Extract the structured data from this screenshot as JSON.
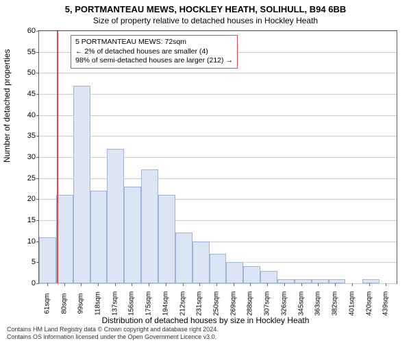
{
  "title_main": "5, PORTMANTEAU MEWS, HOCKLEY HEATH, SOLIHULL, B94 6BB",
  "title_sub": "Size of property relative to detached houses in Hockley Heath",
  "chart": {
    "type": "histogram",
    "y_label": "Number of detached properties",
    "x_label": "Distribution of detached houses by size in Hockley Heath",
    "ylim_min": 0,
    "ylim_max": 60,
    "y_ticks": [
      0,
      5,
      10,
      15,
      20,
      25,
      30,
      35,
      40,
      45,
      50,
      55,
      60
    ],
    "x_tick_labels": [
      "61sqm",
      "80sqm",
      "99sqm",
      "118sqm",
      "137sqm",
      "156sqm",
      "175sqm",
      "194sqm",
      "212sqm",
      "231sqm",
      "250sqm",
      "269sqm",
      "288sqm",
      "307sqm",
      "326sqm",
      "345sqm",
      "363sqm",
      "382sqm",
      "401sqm",
      "420sqm",
      "439sqm"
    ],
    "x_min": 61,
    "x_max": 439,
    "bar_min": 52,
    "bar_width_data": 19,
    "bar_values": [
      11,
      21,
      47,
      22,
      32,
      23,
      27,
      21,
      12,
      10,
      7,
      5,
      4,
      3,
      1,
      1,
      1,
      1,
      0,
      1,
      0
    ],
    "bar_color": "#dbe5f4",
    "bar_border_color": "#9cb3d6",
    "grid_color": "#cccccc",
    "background_color": "#ffffff",
    "reference_line_x": 72,
    "reference_line_color": "#d94a4a",
    "annotation": {
      "lines": [
        "5 PORTMANTEAU MEWS: 72sqm",
        "← 2% of detached houses are smaller (4)",
        "98% of semi-detached houses are larger (212) →"
      ],
      "border_color": "#d94a4a"
    }
  },
  "footer_line1": "Contains HM Land Registry data © Crown copyright and database right 2024.",
  "footer_line2": "Contains OS information licensed under the Open Government Licence v3.0."
}
